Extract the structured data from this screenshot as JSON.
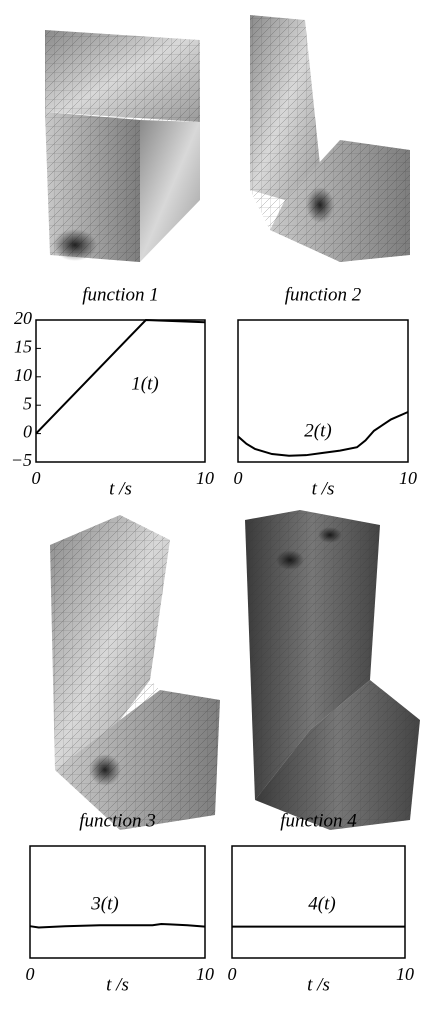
{
  "chart_data": [
    {
      "type": "line",
      "title": "function 1",
      "xlabel": "t /s",
      "annotation": "1(t)",
      "x": [
        0,
        6.5,
        10
      ],
      "values": [
        0,
        20,
        19.6
      ],
      "color": "#000000",
      "xlim": [
        0,
        10
      ],
      "xticks": [
        0,
        10
      ],
      "ylim": [
        -5,
        20
      ],
      "yticks": [
        {
          "value": -5,
          "label": "−5"
        },
        0,
        5,
        10,
        15,
        20
      ]
    },
    {
      "type": "line",
      "title": "function 2",
      "xlabel": "t /s",
      "annotation": "2(t)",
      "x": [
        0,
        0.5,
        1,
        2,
        3,
        4,
        5,
        6,
        7,
        7.5,
        8,
        9,
        10
      ],
      "values": [
        -0.5,
        -1.8,
        -2.7,
        -3.6,
        -3.9,
        -3.8,
        -3.4,
        -3,
        -2.4,
        -1.2,
        0.5,
        2.5,
        3.8
      ],
      "color": "#000000",
      "xlim": [
        0,
        10
      ],
      "xticks": [
        0,
        10
      ],
      "ylim": [
        -5,
        20
      ]
    },
    {
      "type": "line",
      "title": "function 3",
      "xlabel": "t /s",
      "annotation": "3(t)",
      "x": [
        0,
        0.5,
        2,
        4,
        6,
        7,
        7.5,
        8,
        9,
        10
      ],
      "values": [
        2.1,
        1.8,
        2.1,
        2.3,
        2.3,
        2.3,
        2.6,
        2.5,
        2.3,
        2
      ],
      "color": "#000000",
      "xlim": [
        0,
        10
      ],
      "xticks": [
        0,
        10
      ],
      "ylim": [
        -5,
        20
      ]
    },
    {
      "type": "line",
      "title": "function 4",
      "xlabel": "t /s",
      "annotation": "4(t)",
      "x": [
        0,
        10
      ],
      "values": [
        2,
        2
      ],
      "color": "#000000",
      "xlim": [
        0,
        10
      ],
      "xticks": [
        0,
        10
      ],
      "ylim": [
        -5,
        20
      ]
    }
  ]
}
